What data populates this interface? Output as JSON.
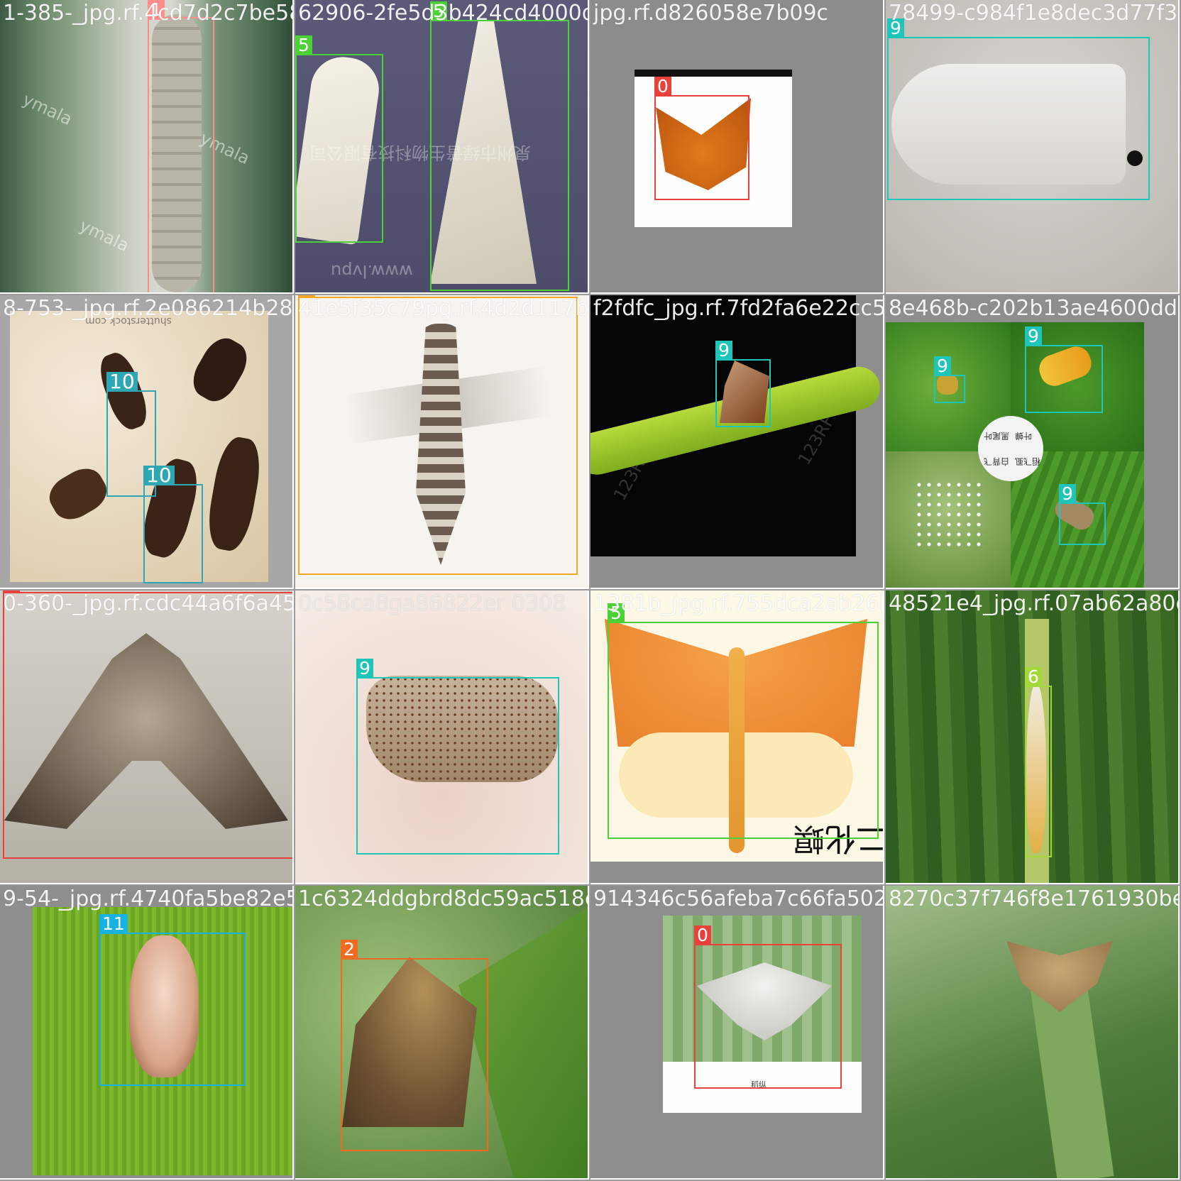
{
  "colors": {
    "class_0": "#e8413c",
    "class_1": "#ff8c8c",
    "class_2": "#f26a1f",
    "class_3": "#f5a623",
    "class_5": "#4cd137",
    "class_6": "#a3d838",
    "class_9": "#1fc5b8",
    "class_10": "#2fa6b3",
    "class_11": "#16b3e0"
  },
  "tiles": [
    {
      "filename": "1-385-_jpg.rf.4cd7d2c7be5842406e2fe5c3094",
      "labels": [
        "1"
      ],
      "scene": "caterpillar-on-leaf",
      "watermarks": [
        "ymala",
        "ymala",
        "ymala"
      ]
    },
    {
      "filename": "62906-2fe5d3b424cd4000d9d8532f78",
      "labels": [
        "5",
        "5"
      ],
      "scene": "white-moths-specimen",
      "watermarks": [
        "泉州市绿普生物科技有限公司",
        "www.lvpu"
      ]
    },
    {
      "filename": "jpg.rf.d826058e7b09c",
      "labels": [
        "0"
      ],
      "scene": "orange-butterfly",
      "watermarks": []
    },
    {
      "filename": "78499-c984f1e8dec3d77f3f0",
      "labels": [
        "9"
      ],
      "scene": "white-moth-closeup",
      "watermarks": []
    },
    {
      "filename": "8-753-_jpg.rf.2e086214b28c",
      "labels": [
        "10",
        "10"
      ],
      "scene": "rice-weevils",
      "watermarks": [
        "shutterstock.com"
      ]
    },
    {
      "filename": "41e5f35c79pg.rf.4d2d117b85b50",
      "labels": [
        "3"
      ],
      "scene": "thrips-specimen",
      "watermarks": []
    },
    {
      "filename": "f2fdfc_jpg.rf.7fd2fa6e22cc56",
      "labels": [
        "9"
      ],
      "scene": "planthopper-on-stem",
      "watermarks": [
        "123RF",
        "123RF"
      ]
    },
    {
      "filename": "8e468b-c202b13ae4600dd69",
      "labels": [
        "9",
        "9",
        "9"
      ],
      "scene": "leafhopper-collage",
      "watermarks": [
        "叶蝉",
        "黑尾叶",
        "白背飞",
        "稻飞虱"
      ]
    },
    {
      "filename": "0-360-_jpg.rf.cdc44a6f6a45c",
      "labels": [
        "0"
      ],
      "scene": "brown-moth",
      "watermarks": []
    },
    {
      "filename": "0c58ca8ga86822er 0308",
      "labels": [
        "9"
      ],
      "scene": "spotted-planthopper",
      "watermarks": []
    },
    {
      "filename": "1381b_jpg.rf.755dca2ab26bc4",
      "labels": [
        "5"
      ],
      "scene": "orange-moth-specimen",
      "watermarks": [
        "二化螟"
      ]
    },
    {
      "filename": "48521e4_jpg.rf.07ab62a80ca421",
      "labels": [
        "6"
      ],
      "scene": "grass-blade-pest",
      "watermarks": []
    },
    {
      "filename": "9-54-_jpg.rf.4740fa5be82e55",
      "labels": [
        "11"
      ],
      "scene": "leafhopper-on-leaf",
      "watermarks": []
    },
    {
      "filename": "1c6324ddgbrd8dc59ac518e",
      "labels": [
        "2"
      ],
      "scene": "skipper-moth",
      "watermarks": []
    },
    {
      "filename": "914346c56afeba7c66fa502a73",
      "labels": [
        "0"
      ],
      "scene": "pale-moth-on-grass",
      "watermarks": [
        "稻纵"
      ]
    },
    {
      "filename": "8270c37f746f8e1761930be",
      "labels": [],
      "scene": "blurry-moth-on-grass",
      "watermarks": []
    }
  ]
}
